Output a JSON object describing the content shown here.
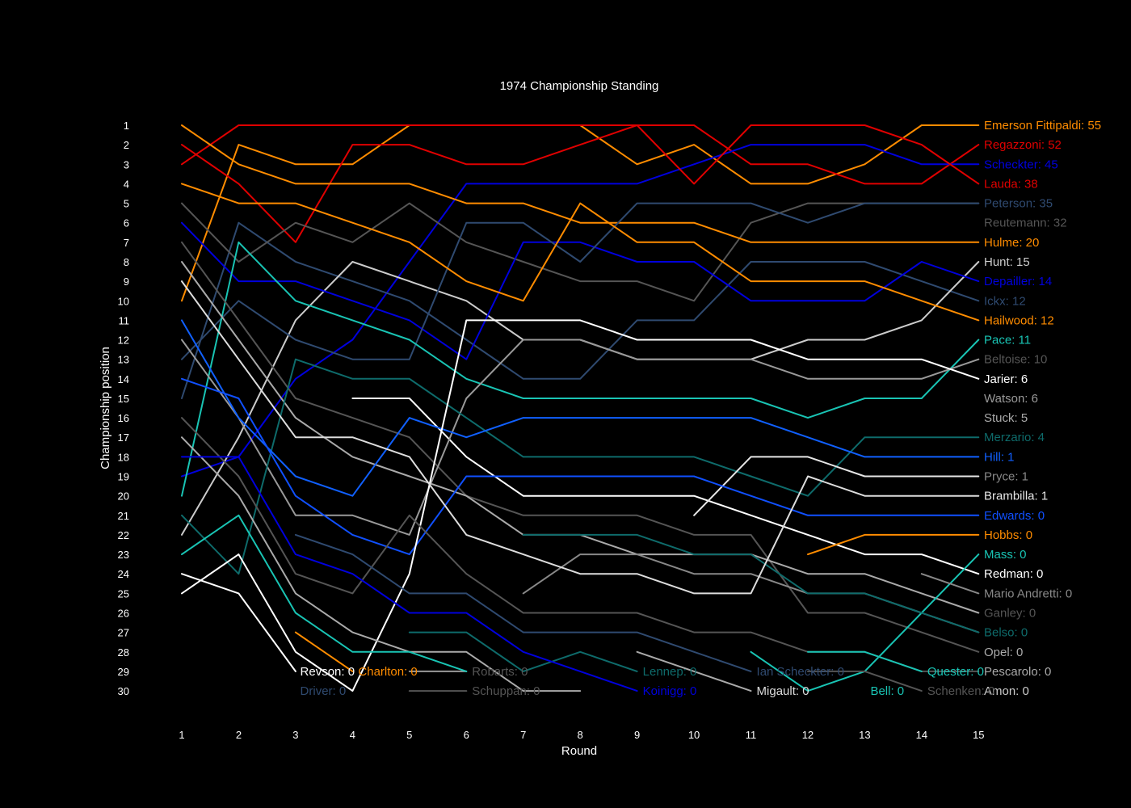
{
  "chart_data": {
    "type": "line",
    "title": "1974 Championship Standing",
    "xlabel": "Round",
    "ylabel": "Championship position",
    "xlim": [
      1,
      15
    ],
    "ylim": [
      30,
      1
    ],
    "y_inverted": true,
    "grid": false,
    "legend": "none (labels at line ends)",
    "x": [
      1,
      2,
      3,
      4,
      5,
      6,
      7,
      8,
      9,
      10,
      11,
      12,
      13,
      14,
      15
    ],
    "y_ticks": [
      1,
      2,
      3,
      4,
      5,
      6,
      7,
      8,
      9,
      10,
      11,
      12,
      13,
      14,
      15,
      16,
      17,
      18,
      19,
      20,
      21,
      22,
      23,
      24,
      25,
      26,
      27,
      28,
      29,
      30
    ],
    "series": [
      {
        "name": "Emerson Fittipaldi: 55",
        "color": "#ff8c00",
        "values": [
          10,
          2,
          3,
          3,
          1,
          1,
          1,
          1,
          3,
          2,
          4,
          4,
          3,
          1,
          1
        ]
      },
      {
        "name": "Regazzoni: 52",
        "color": "#e00000",
        "values": [
          3,
          1,
          1,
          1,
          1,
          1,
          1,
          1,
          1,
          1,
          3,
          3,
          4,
          4,
          2
        ]
      },
      {
        "name": "Scheckter: 45",
        "color": "#0000dd",
        "values": [
          19,
          18,
          14,
          12,
          8,
          4,
          4,
          4,
          4,
          3,
          2,
          2,
          2,
          3,
          3
        ]
      },
      {
        "name": "Lauda: 38",
        "color": "#e00000",
        "values": [
          2,
          4,
          7,
          2,
          2,
          3,
          3,
          2,
          1,
          4,
          1,
          1,
          1,
          2,
          4
        ]
      },
      {
        "name": "Peterson: 35",
        "color": "#2f4a70",
        "values": [
          15,
          6,
          8,
          9,
          10,
          12,
          14,
          14,
          11,
          11,
          8,
          8,
          8,
          9,
          10
        ]
      },
      {
        "name": "Reutemann: 32",
        "color": "#555555",
        "values": [
          5,
          8,
          6,
          7,
          5,
          7,
          8,
          9,
          9,
          10,
          6,
          5,
          5,
          5,
          5
        ]
      },
      {
        "name": "Hulme: 20",
        "color": "#ff8c00",
        "values": [
          1,
          3,
          4,
          4,
          4,
          5,
          5,
          6,
          6,
          6,
          7,
          7,
          7,
          7,
          7
        ]
      },
      {
        "name": "Hunt: 15",
        "color": "#cccccc",
        "values": [
          22,
          17,
          11,
          8,
          9,
          10,
          12,
          12,
          13,
          13,
          13,
          12,
          12,
          11,
          8
        ]
      },
      {
        "name": "Depailler: 14",
        "color": "#0000dd",
        "values": [
          6,
          9,
          9,
          10,
          11,
          13,
          7,
          7,
          8,
          8,
          10,
          10,
          10,
          8,
          9
        ]
      },
      {
        "name": "Ickx: 12",
        "color": "#2f4a70",
        "values": [
          13,
          10,
          12,
          13,
          13,
          6,
          6,
          8,
          5,
          5,
          5,
          6,
          5,
          5,
          5
        ]
      },
      {
        "name": "Hailwood: 12",
        "color": "#ff8c00",
        "values": [
          4,
          5,
          5,
          6,
          7,
          9,
          10,
          5,
          7,
          7,
          9,
          9,
          9,
          10,
          11
        ]
      },
      {
        "name": "Pace: 11",
        "color": "#19c4b4",
        "values": [
          20,
          7,
          10,
          11,
          12,
          14,
          15,
          15,
          15,
          15,
          15,
          16,
          15,
          15,
          12
        ]
      },
      {
        "name": "Beltoise: 10",
        "color": "#555555",
        "values": [
          7,
          11,
          15,
          16,
          17,
          20,
          21,
          21,
          21,
          22,
          22,
          26,
          26,
          27,
          28
        ]
      },
      {
        "name": "Jarier: 6",
        "color": "#ffffff",
        "values": [
          null,
          null,
          null,
          15,
          15,
          18,
          20,
          20,
          20,
          20,
          21,
          22,
          23,
          23,
          24
        ]
      },
      {
        "name": "Watson: 6",
        "color": "#999999",
        "values": [
          12,
          16,
          21,
          21,
          22,
          15,
          12,
          12,
          13,
          13,
          13,
          14,
          14,
          14,
          13
        ]
      },
      {
        "name": "Stuck: 5",
        "color": "#aaaaaa",
        "values": [
          8,
          12,
          16,
          18,
          19,
          20,
          22,
          22,
          23,
          23,
          23,
          24,
          24,
          25,
          26
        ]
      },
      {
        "name": "Merzario: 4",
        "color": "#0e6b6b",
        "values": [
          21,
          24,
          13,
          14,
          14,
          16,
          18,
          18,
          18,
          18,
          19,
          20,
          17,
          17,
          17
        ]
      },
      {
        "name": "Hill: 1",
        "color": "#1060ff",
        "values": [
          11,
          16,
          19,
          20,
          16,
          17,
          16,
          16,
          16,
          16,
          16,
          17,
          18,
          18,
          18
        ]
      },
      {
        "name": "Pryce: 1",
        "color": "#888888",
        "values": [
          null,
          null,
          null,
          null,
          null,
          null,
          25,
          23,
          23,
          24,
          24,
          25,
          25,
          26,
          27
        ]
      },
      {
        "name": "Brambilla: 1",
        "color": "#e6e6e6",
        "values": [
          null,
          null,
          null,
          null,
          null,
          null,
          null,
          null,
          null,
          21,
          18,
          18,
          19,
          19,
          19
        ]
      },
      {
        "name": "Edwards: 0",
        "color": "#1050ff",
        "values": [
          14,
          15,
          20,
          22,
          23,
          19,
          19,
          19,
          19,
          19,
          20,
          21,
          21,
          21,
          21
        ]
      },
      {
        "name": "Hobbs: 0",
        "color": "#ff8c00",
        "values": [
          null,
          null,
          null,
          null,
          null,
          null,
          null,
          null,
          null,
          null,
          null,
          23,
          22,
          22,
          22
        ]
      },
      {
        "name": "Mass: 0",
        "color": "#19c4b4",
        "values": [
          null,
          null,
          null,
          null,
          null,
          null,
          null,
          null,
          null,
          null,
          28,
          30,
          29,
          26,
          23
        ]
      },
      {
        "name": "Redman: 0",
        "color": "#ffffff",
        "values": [
          25,
          23,
          28,
          30,
          24,
          11,
          11,
          11,
          12,
          12,
          12,
          13,
          13,
          13,
          14
        ]
      },
      {
        "name": "Mario Andretti: 0",
        "color": "#888888",
        "values": [
          null,
          null,
          null,
          null,
          null,
          null,
          null,
          null,
          null,
          null,
          null,
          null,
          null,
          24,
          25
        ]
      },
      {
        "name": "Ganley: 0",
        "color": "#555555",
        "values": [
          16,
          19,
          24,
          25,
          21,
          24,
          26,
          26,
          26,
          27,
          27,
          28,
          28,
          29,
          29
        ]
      },
      {
        "name": "Belso: 0",
        "color": "#0e6b6b",
        "values": [
          null,
          null,
          null,
          null,
          null,
          null,
          22,
          22,
          22,
          23,
          23,
          25,
          25,
          26,
          27
        ]
      },
      {
        "name": "Opel: 0",
        "color": "#aaaaaa",
        "values": [
          null,
          null,
          null,
          null,
          null,
          null,
          null,
          null,
          28,
          29,
          30,
          null,
          null,
          null,
          null
        ]
      },
      {
        "name": "Pescarolo: 0",
        "color": "#aaaaaa",
        "values": [
          17,
          20,
          25,
          27,
          28,
          28,
          30,
          30,
          null,
          null,
          null,
          null,
          null,
          null,
          null
        ]
      },
      {
        "name": "Amon: 0",
        "color": "#555555",
        "values": [
          null,
          null,
          null,
          null,
          null,
          null,
          null,
          null,
          null,
          null,
          null,
          29,
          29,
          30,
          null
        ]
      },
      {
        "name": "Revson: 0",
        "color": "#ffffff",
        "values": [
          24,
          25,
          29,
          null,
          null,
          null,
          null,
          null,
          null,
          null,
          null,
          null,
          null,
          null,
          null
        ]
      },
      {
        "name": "Charlton: 0",
        "color": "#ff8c00",
        "values": [
          null,
          null,
          27,
          29,
          null,
          null,
          null,
          null,
          null,
          null,
          null,
          null,
          null,
          null,
          null
        ]
      },
      {
        "name": "Driver: 0",
        "color": "#2f4a70",
        "values": [
          null,
          null,
          22,
          23,
          25,
          25,
          27,
          27,
          27,
          28,
          29,
          null,
          null,
          null,
          null
        ]
      },
      {
        "name": "Robarts: 0",
        "color": "#999999",
        "values": [
          null,
          null,
          null,
          null,
          29,
          29,
          null,
          null,
          null,
          null,
          null,
          null,
          null,
          null,
          null
        ]
      },
      {
        "name": "Schuppan: 0",
        "color": "#555555",
        "values": [
          null,
          null,
          null,
          null,
          30,
          30,
          null,
          null,
          null,
          null,
          null,
          null,
          null,
          null,
          null
        ]
      },
      {
        "name": "Lennep: 0",
        "color": "#0e6b6b",
        "values": [
          null,
          null,
          null,
          null,
          27,
          27,
          29,
          28,
          29,
          null,
          null,
          null,
          null,
          null,
          null
        ]
      },
      {
        "name": "Koinigg: 0",
        "color": "#0000dd",
        "values": [
          18,
          18,
          23,
          24,
          26,
          26,
          28,
          29,
          30,
          null,
          null,
          null,
          null,
          null,
          null
        ]
      },
      {
        "name": "Ian Scheckter: 0",
        "color": "#2f4a70",
        "values": [
          null,
          null,
          null,
          null,
          null,
          null,
          null,
          null,
          null,
          null,
          null,
          null,
          null,
          null,
          null
        ]
      },
      {
        "name": "Migault: 0",
        "color": "#dddddd",
        "values": [
          9,
          13,
          17,
          17,
          18,
          22,
          23,
          24,
          24,
          25,
          25,
          19,
          20,
          20,
          20
        ]
      },
      {
        "name": "Bell: 0",
        "color": "#19c4b4",
        "values": [
          23,
          21,
          26,
          28,
          28,
          29,
          null,
          null,
          null,
          null,
          null,
          null,
          null,
          null,
          null
        ]
      },
      {
        "name": "Quester: 0",
        "color": "#19c4b4",
        "values": [
          null,
          null,
          null,
          null,
          null,
          null,
          null,
          null,
          null,
          null,
          null,
          28,
          28,
          29,
          null
        ]
      },
      {
        "name": "Schenken: 0",
        "color": "#555555",
        "values": [
          null,
          null,
          null,
          null,
          null,
          null,
          null,
          null,
          null,
          null,
          null,
          null,
          null,
          null,
          null
        ]
      }
    ]
  },
  "end_labels": [
    {
      "text": "Emerson Fittipaldi: 55",
      "color": "#ff8c00",
      "row": 1
    },
    {
      "text": "Regazzoni: 52",
      "color": "#e00000",
      "row": 2
    },
    {
      "text": "Scheckter: 45",
      "color": "#0000dd",
      "row": 3
    },
    {
      "text": "Lauda: 38",
      "color": "#e00000",
      "row": 4
    },
    {
      "text": "Peterson: 35",
      "color": "#2f4a70",
      "row": 5
    },
    {
      "text": "Reutemann: 32",
      "color": "#555555",
      "row": 6
    },
    {
      "text": "Hulme: 20",
      "color": "#ff8c00",
      "row": 7
    },
    {
      "text": "Hunt: 15",
      "color": "#cccccc",
      "row": 8
    },
    {
      "text": "Depailler: 14",
      "color": "#0000dd",
      "row": 9
    },
    {
      "text": "Ickx: 12",
      "color": "#2f4a70",
      "row": 10
    },
    {
      "text": "Hailwood: 12",
      "color": "#ff8c00",
      "row": 11
    },
    {
      "text": "Pace: 11",
      "color": "#19c4b4",
      "row": 12
    },
    {
      "text": "Beltoise: 10",
      "color": "#555555",
      "row": 13
    },
    {
      "text": "Jarier: 6",
      "color": "#ffffff",
      "row": 14
    },
    {
      "text": "Watson: 6",
      "color": "#999999",
      "row": 15
    },
    {
      "text": "Stuck: 5",
      "color": "#aaaaaa",
      "row": 16
    },
    {
      "text": "Merzario: 4",
      "color": "#0e6b6b",
      "row": 17
    },
    {
      "text": "Hill: 1",
      "color": "#1060ff",
      "row": 18
    },
    {
      "text": "Pryce: 1",
      "color": "#888888",
      "row": 19
    },
    {
      "text": "Brambilla: 1",
      "color": "#e6e6e6",
      "row": 20
    },
    {
      "text": "Edwards: 0",
      "color": "#1050ff",
      "row": 21
    },
    {
      "text": "Hobbs: 0",
      "color": "#ff8c00",
      "row": 22
    },
    {
      "text": "Mass: 0",
      "color": "#19c4b4",
      "row": 23
    },
    {
      "text": "Redman: 0",
      "color": "#ffffff",
      "row": 24
    },
    {
      "text": "Mario Andretti: 0",
      "color": "#888888",
      "row": 25
    },
    {
      "text": "Ganley: 0",
      "color": "#555555",
      "row": 26
    },
    {
      "text": "Belso: 0",
      "color": "#0e6b6b",
      "row": 27
    },
    {
      "text": "Opel: 0",
      "color": "#aaaaaa",
      "row": 28
    },
    {
      "text": "Pescarolo: 0",
      "color": "#aaaaaa",
      "row": 29
    },
    {
      "text": "Amon: 0",
      "color": "#cccccc",
      "row": 30
    }
  ],
  "inline_labels": [
    {
      "text": "Revson: 0",
      "color": "#ffffff",
      "x": 3.08,
      "row": 29
    },
    {
      "text": "Charlton: 0",
      "color": "#ff8c00",
      "x": 4.1,
      "row": 29
    },
    {
      "text": "Driver: 0",
      "color": "#2f4a70",
      "x": 3.08,
      "row": 30
    },
    {
      "text": "Robarts: 0",
      "color": "#555555",
      "x": 6.1,
      "row": 29
    },
    {
      "text": "Schuppan: 0",
      "color": "#555555",
      "x": 6.1,
      "row": 30
    },
    {
      "text": "Lennep: 0",
      "color": "#0e6b6b",
      "x": 9.1,
      "row": 29
    },
    {
      "text": "Koinigg: 0",
      "color": "#0000dd",
      "x": 9.1,
      "row": 30
    },
    {
      "text": "Ian Scheckter: 0",
      "color": "#2f4a70",
      "x": 11.1,
      "row": 29
    },
    {
      "text": "Migault: 0",
      "color": "#dddddd",
      "x": 11.1,
      "row": 30
    },
    {
      "text": "Quester: 0",
      "color": "#19c4b4",
      "x": 14.1,
      "row": 29
    },
    {
      "text": "Bell: 0",
      "color": "#19c4b4",
      "x": 13.1,
      "row": 30
    },
    {
      "text": "Schenken: 0",
      "color": "#555555",
      "x": 14.1,
      "row": 30
    }
  ]
}
